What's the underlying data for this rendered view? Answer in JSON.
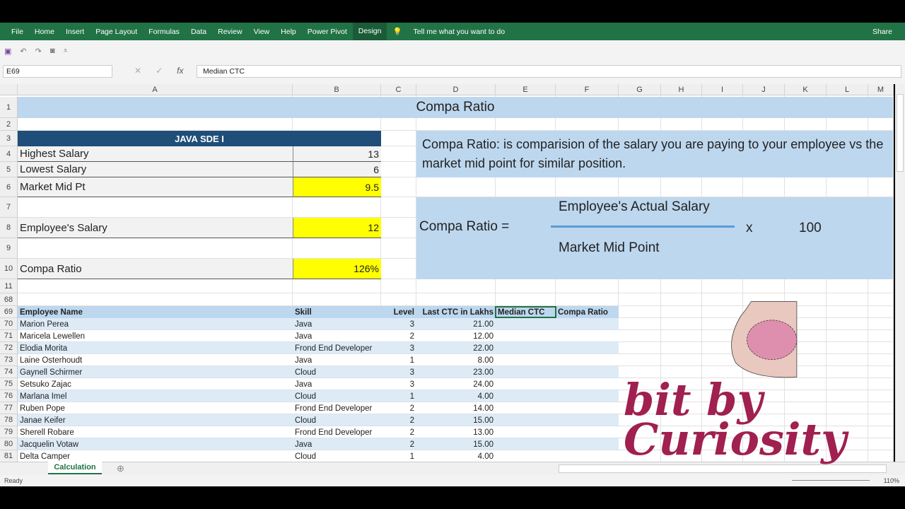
{
  "ribbon": {
    "tabs": [
      "File",
      "Home",
      "Insert",
      "Page Layout",
      "Formulas",
      "Data",
      "Review",
      "View",
      "Help",
      "Power Pivot",
      "Design"
    ],
    "tell_me": "Tell me what you want to do",
    "share": "Share",
    "accent": "#217346"
  },
  "formula_bar": {
    "name_box": "E69",
    "formula": "Median CTC"
  },
  "columns": [
    "A",
    "B",
    "C",
    "D",
    "E",
    "F",
    "G",
    "H",
    "I",
    "J",
    "K",
    "L",
    "M"
  ],
  "sheet": {
    "title": "Compa Ratio",
    "section_header": "JAVA SDE I",
    "rows": [
      {
        "label": "Highest Salary",
        "value": "13"
      },
      {
        "label": "Lowest Salary",
        "value": "6"
      },
      {
        "label": "Market Mid Pt",
        "value": "9.5"
      },
      {
        "label": "Employee's Salary",
        "value": "12"
      },
      {
        "label": "Compa Ratio",
        "value": "126%"
      }
    ],
    "definition": "Compa Ratio: is comparision of the salary you are paying to your employee vs the market mid point for similar position.",
    "formula": {
      "lhs": "Compa Ratio =",
      "numerator": "Employee's Actual Salary",
      "denominator": "Market Mid Point",
      "times": "x",
      "multiplier": "100"
    }
  },
  "table": {
    "headers": [
      "Employee Name",
      "Skill",
      "Level",
      "Last CTC in Lakhs",
      "Median CTC",
      "Compa Ratio"
    ],
    "rows": [
      {
        "row": "70",
        "name": "Marion Perea",
        "skill": "Java",
        "level": "3",
        "ctc": "21.00"
      },
      {
        "row": "71",
        "name": "Maricela Lewellen",
        "skill": "Java",
        "level": "2",
        "ctc": "12.00"
      },
      {
        "row": "72",
        "name": "Elodia Morita",
        "skill": "Frond End Developer",
        "level": "3",
        "ctc": "22.00"
      },
      {
        "row": "73",
        "name": "Laine Osterhoudt",
        "skill": "Java",
        "level": "1",
        "ctc": "8.00"
      },
      {
        "row": "74",
        "name": "Gaynell Schirmer",
        "skill": "Cloud",
        "level": "3",
        "ctc": "23.00"
      },
      {
        "row": "75",
        "name": "Setsuko Zajac",
        "skill": "Java",
        "level": "3",
        "ctc": "24.00"
      },
      {
        "row": "76",
        "name": "Marlana Imel",
        "skill": "Cloud",
        "level": "1",
        "ctc": "4.00"
      },
      {
        "row": "77",
        "name": "Ruben Pope",
        "skill": "Frond End Developer",
        "level": "2",
        "ctc": "14.00"
      },
      {
        "row": "78",
        "name": "Janae Keifer",
        "skill": "Cloud",
        "level": "2",
        "ctc": "15.00"
      },
      {
        "row": "79",
        "name": "Sherell Robare",
        "skill": "Frond End Developer",
        "level": "2",
        "ctc": "13.00"
      },
      {
        "row": "80",
        "name": "Jacquelin Votaw",
        "skill": "Java",
        "level": "2",
        "ctc": "15.00"
      },
      {
        "row": "81",
        "name": "Delta Camper",
        "skill": "Cloud",
        "level": "1",
        "ctc": "4.00"
      }
    ]
  },
  "sheet_tab": "Calculation",
  "status": {
    "text": "Ready",
    "zoom": "110%"
  },
  "watermark": "bit by Curiosity"
}
